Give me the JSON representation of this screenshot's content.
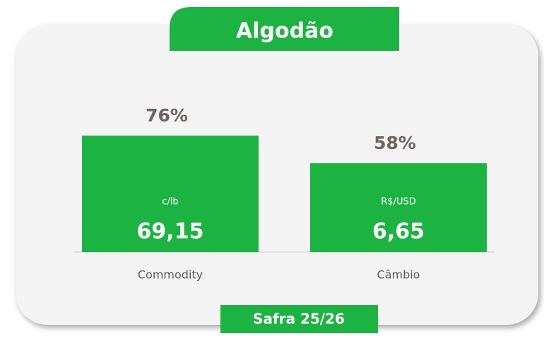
{
  "chart_data": {
    "type": "bar",
    "title": "Algodão",
    "categories": [
      "Commodity",
      "Câmbio"
    ],
    "values": [
      76,
      58
    ],
    "value_labels": [
      "76%",
      "58%"
    ],
    "units": [
      "c/lb",
      "R$/USD"
    ],
    "prices": [
      "69,15",
      "6,65"
    ],
    "color": "#1db342",
    "ylim": [
      0,
      100
    ],
    "footer": "Safra 25/26"
  }
}
